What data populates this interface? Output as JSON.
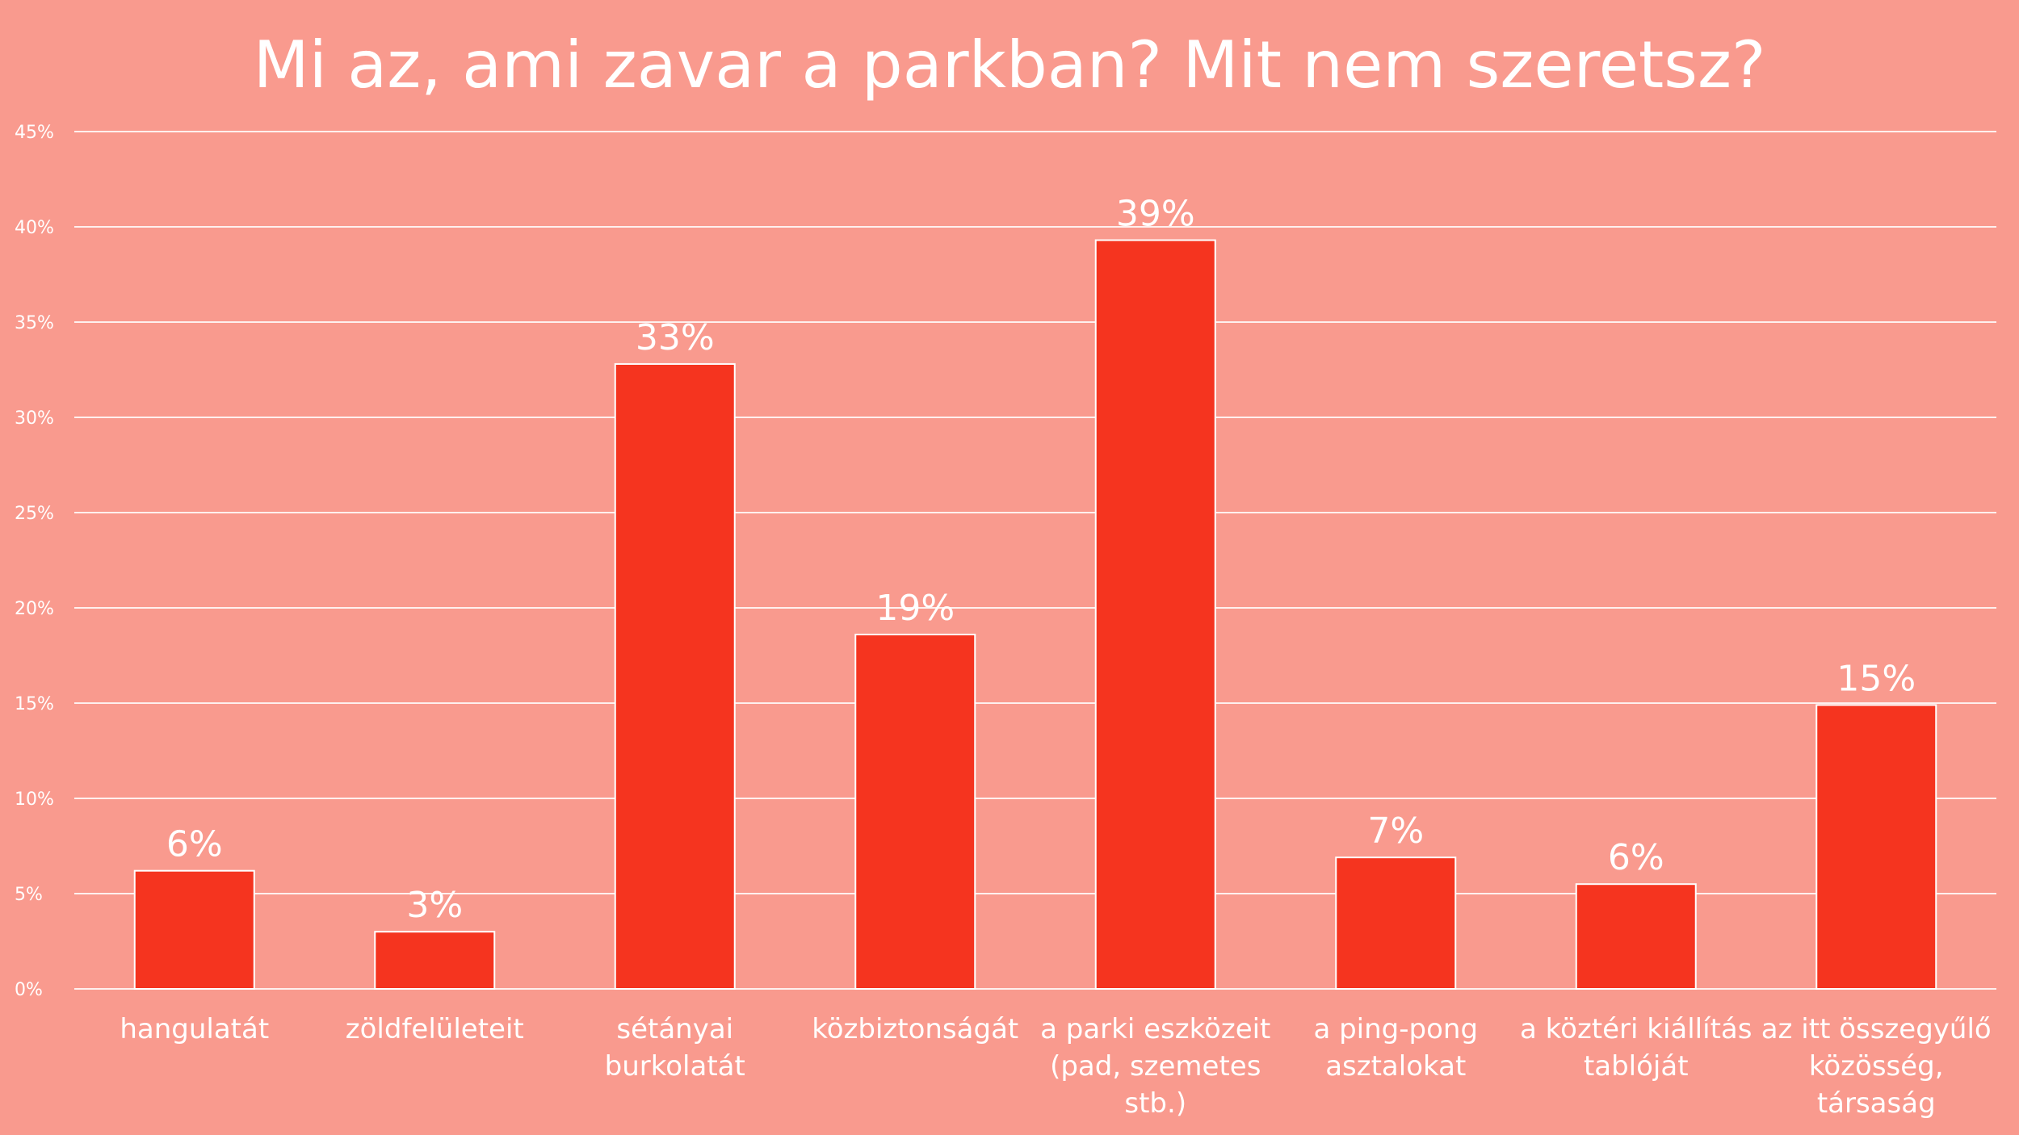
{
  "chart_data": {
    "type": "bar",
    "title": "Mi az, ami zavar a parkban? Mit nem szeretsz?",
    "categories": [
      [
        "hangulatát"
      ],
      [
        "zöldfelületeit"
      ],
      [
        "sétányai",
        "burkolatát"
      ],
      [
        "közbiztonságát"
      ],
      [
        "a parki eszközeit",
        "(pad, szemetes",
        "stb.)"
      ],
      [
        "a ping-pong",
        "asztalokat"
      ],
      [
        "a köztéri kiállítás",
        "tablóját"
      ],
      [
        "az itt összegyűlő",
        "közösség,",
        "társaság"
      ]
    ],
    "values": [
      6.2,
      3.0,
      32.8,
      18.6,
      39.3,
      6.9,
      5.5,
      14.9
    ],
    "data_labels": [
      "6%",
      "3%",
      "33%",
      "19%",
      "39%",
      "7%",
      "6%",
      "15%"
    ],
    "yticks": [
      "0%",
      "5%",
      "10%",
      "15%",
      "20%",
      "25%",
      "30%",
      "35%",
      "40%",
      "45%"
    ],
    "ylim": [
      0,
      45
    ],
    "grid": true,
    "colors": {
      "bar": "#f5341f",
      "background": "#f99a8e",
      "text": "#ffffff"
    }
  }
}
